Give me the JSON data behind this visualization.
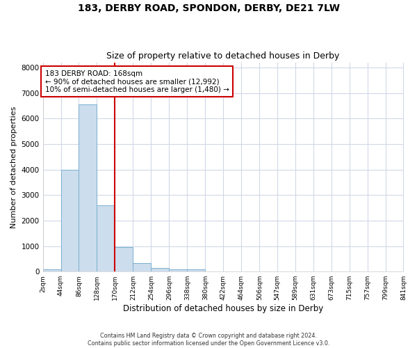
{
  "title1": "183, DERBY ROAD, SPONDON, DERBY, DE21 7LW",
  "title2": "Size of property relative to detached houses in Derby",
  "xlabel": "Distribution of detached houses by size in Derby",
  "ylabel": "Number of detached properties",
  "footer": "Contains HM Land Registry data © Crown copyright and database right 2024.\nContains public sector information licensed under the Open Government Licence v3.0.",
  "bin_edges": [
    2,
    44,
    86,
    128,
    170,
    212,
    254,
    296,
    338,
    380,
    422,
    464,
    506,
    547,
    589,
    631,
    673,
    715,
    757,
    799,
    841
  ],
  "bin_labels": [
    "2sqm",
    "44sqm",
    "86sqm",
    "128sqm",
    "170sqm",
    "212sqm",
    "254sqm",
    "296sqm",
    "338sqm",
    "380sqm",
    "422sqm",
    "464sqm",
    "506sqm",
    "547sqm",
    "589sqm",
    "631sqm",
    "673sqm",
    "715sqm",
    "757sqm",
    "799sqm",
    "841sqm"
  ],
  "bar_heights": [
    80,
    4000,
    6550,
    2600,
    950,
    320,
    130,
    100,
    80,
    0,
    0,
    0,
    0,
    0,
    0,
    0,
    0,
    0,
    0,
    0
  ],
  "bar_color": "#ccdded",
  "bar_edge_color": "#7ab0d0",
  "vline_x": 170,
  "vline_color": "#cc0000",
  "ylim": [
    0,
    8200
  ],
  "yticks": [
    0,
    1000,
    2000,
    3000,
    4000,
    5000,
    6000,
    7000,
    8000
  ],
  "annotation_text": "183 DERBY ROAD: 168sqm\n← 90% of detached houses are smaller (12,992)\n10% of semi-detached houses are larger (1,480) →",
  "annotation_box_color": "#ffffff",
  "annotation_box_edge_color": "#cc0000",
  "bg_color": "#ffffff",
  "plot_bg_color": "#ffffff",
  "grid_color": "#d0d8e8"
}
